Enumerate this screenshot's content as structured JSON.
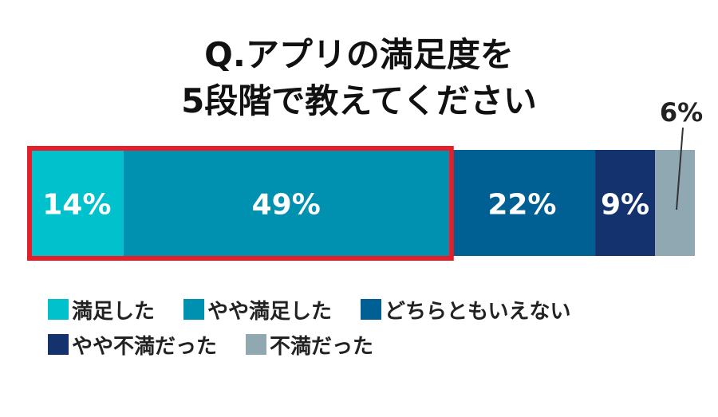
{
  "chart_data": {
    "type": "bar",
    "orientation": "horizontal-stacked",
    "title_lines": [
      "Q.アプリの満足度を",
      "5段階で教えてください"
    ],
    "series": [
      {
        "name": "満足した",
        "value": 14,
        "label": "14%",
        "color": "#00c1cc"
      },
      {
        "name": "やや満足した",
        "value": 49,
        "label": "49%",
        "color": "#0090b0"
      },
      {
        "name": "どちらともいえない",
        "value": 22,
        "label": "22%",
        "color": "#005f93"
      },
      {
        "name": "やや不満だった",
        "value": 9,
        "label": "9%",
        "color": "#14336e"
      },
      {
        "name": "不満だった",
        "value": 6,
        "label": "6%",
        "color": "#8fa8b2"
      }
    ],
    "highlight_series": [
      "満足した",
      "やや満足した"
    ],
    "highlight_color": "#e51f2a",
    "legend_placement": "bottom",
    "xlim": [
      0,
      100
    ],
    "grid": false
  }
}
